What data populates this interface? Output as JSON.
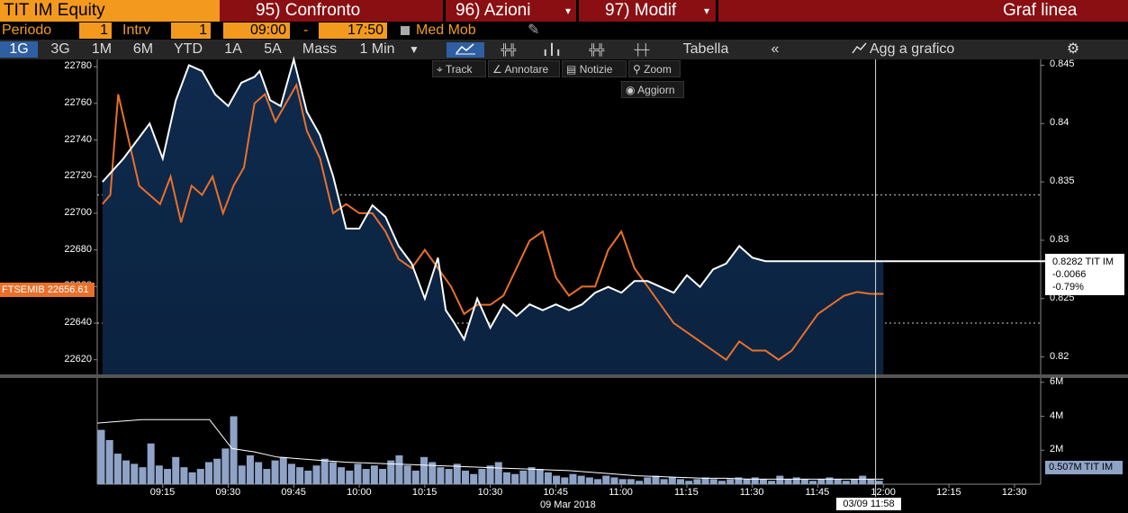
{
  "header": {
    "title": "TIT IM Equity",
    "menu1": "95) Confronto",
    "menu2": "96) Azioni",
    "menu3": "97) Modif",
    "right_title": "Graf linea"
  },
  "settings": {
    "periodo_label": "Periodo",
    "periodo_value": "1",
    "intrv_label": "Intrv",
    "intrv_value": "1",
    "time_start": "09:00",
    "dash": "-",
    "time_end": "17:50",
    "med_mob": "Med Mob"
  },
  "tabs": [
    "1G",
    "3G",
    "1M",
    "6M",
    "YTD",
    "1A",
    "5A",
    "Mass",
    "1 Min"
  ],
  "toolbar": {
    "tabella": "Tabella",
    "back": "«",
    "agg": "Agg a grafico",
    "gear": "⚙"
  },
  "tools": {
    "track": "Track",
    "annotare": "Annotare",
    "notizie": "Notizie",
    "zoom": "Zoom",
    "aggiorn": "Aggiorn"
  },
  "chart_data": {
    "type": "line",
    "date_label": "09 Mar 2018",
    "x_ticks": [
      "09:15",
      "09:30",
      "09:45",
      "10:00",
      "10:15",
      "10:30",
      "10:45",
      "11:00",
      "11:15",
      "11:30",
      "11:45",
      "12:00",
      "12:15",
      "12:30"
    ],
    "left_axis": {
      "ticks": [
        22780,
        22760,
        22740,
        22720,
        22700,
        22680,
        22660,
        22640,
        22620
      ],
      "range": [
        22612,
        22784
      ]
    },
    "right_axis": {
      "ticks": [
        0.845,
        0.84,
        0.835,
        0.83,
        0.825,
        0.82
      ],
      "range": [
        0.8185,
        0.8455
      ]
    },
    "volume_axis": {
      "ticks": [
        "6M",
        "4M",
        "2M"
      ],
      "max": 6.2
    },
    "dotted_levels_left": [
      22710,
      22640
    ],
    "series": [
      {
        "name": "TIT IM",
        "color": "#ffffff",
        "axis": "right",
        "x": [
          9.02,
          9.06,
          9.1,
          9.15,
          9.2,
          9.25,
          9.3,
          9.35,
          9.4,
          9.45,
          9.5,
          9.55,
          9.6,
          9.62,
          9.66,
          9.7,
          9.75,
          9.8,
          9.85,
          9.9,
          9.95,
          10.0,
          10.05,
          10.1,
          10.15,
          10.2,
          10.25,
          10.3,
          10.33,
          10.36,
          10.4,
          10.45,
          10.5,
          10.55,
          10.6,
          10.65,
          10.7,
          10.75,
          10.8,
          10.85,
          10.9,
          10.95,
          11.0,
          11.05,
          11.1,
          11.15,
          11.2,
          11.25,
          11.3,
          11.35,
          11.4,
          11.45,
          11.5,
          11.55,
          11.6,
          11.65,
          11.7,
          11.75,
          11.8,
          11.85,
          11.9,
          11.95,
          11.98,
          12.0
        ],
        "y": [
          0.835,
          0.836,
          0.837,
          0.8385,
          0.84,
          0.837,
          0.842,
          0.845,
          0.8445,
          0.8425,
          0.8415,
          0.8435,
          0.844,
          0.8445,
          0.842,
          0.8415,
          0.8455,
          0.841,
          0.839,
          0.8355,
          0.831,
          0.831,
          0.833,
          0.832,
          0.8295,
          0.828,
          0.825,
          0.8285,
          0.824,
          0.823,
          0.8215,
          0.825,
          0.8225,
          0.8245,
          0.8235,
          0.8245,
          0.824,
          0.8245,
          0.824,
          0.8245,
          0.8255,
          0.826,
          0.8255,
          0.8265,
          0.8265,
          0.826,
          0.8255,
          0.827,
          0.826,
          0.8275,
          0.828,
          0.8295,
          0.8285,
          0.8282,
          0.8282,
          0.8282,
          0.8282,
          0.8282,
          0.8282,
          0.8282,
          0.8282,
          0.8282,
          0.8282,
          0.8282
        ]
      },
      {
        "name": "FTSEMIB",
        "color": "#e8702a",
        "axis": "left",
        "x": [
          9.02,
          9.05,
          9.08,
          9.12,
          9.16,
          9.2,
          9.24,
          9.28,
          9.32,
          9.36,
          9.4,
          9.44,
          9.48,
          9.52,
          9.56,
          9.6,
          9.64,
          9.68,
          9.72,
          9.76,
          9.8,
          9.85,
          9.9,
          9.95,
          10.0,
          10.05,
          10.1,
          10.15,
          10.2,
          10.25,
          10.3,
          10.35,
          10.4,
          10.45,
          10.5,
          10.55,
          10.6,
          10.65,
          10.7,
          10.75,
          10.8,
          10.85,
          10.9,
          10.95,
          11.0,
          11.05,
          11.1,
          11.15,
          11.2,
          11.25,
          11.3,
          11.35,
          11.4,
          11.45,
          11.5,
          11.55,
          11.6,
          11.65,
          11.7,
          11.75,
          11.8,
          11.85,
          11.9,
          11.95,
          12.0
        ],
        "y": [
          22705,
          22710,
          22765,
          22740,
          22715,
          22710,
          22705,
          22720,
          22695,
          22715,
          22710,
          22720,
          22700,
          22715,
          22725,
          22760,
          22765,
          22750,
          22760,
          22770,
          22745,
          22730,
          22700,
          22705,
          22700,
          22700,
          22690,
          22675,
          22670,
          22680,
          22670,
          22660,
          22645,
          22650,
          22650,
          22655,
          22670,
          22685,
          22690,
          22665,
          22655,
          22660,
          22660,
          22680,
          22690,
          22670,
          22660,
          22650,
          22640,
          22635,
          22630,
          22625,
          22620,
          22630,
          22625,
          22625,
          22620,
          22625,
          22635,
          22645,
          22650,
          22655,
          22657,
          22656,
          22656
        ]
      }
    ],
    "volume": [
      3.2,
      2.6,
      1.8,
      1.4,
      1.2,
      1.0,
      2.4,
      1.1,
      0.9,
      1.6,
      1.0,
      0.7,
      0.9,
      1.3,
      1.5,
      2.1,
      4.0,
      1.1,
      1.7,
      1.3,
      0.9,
      1.4,
      1.6,
      1.2,
      1.0,
      0.8,
      1.1,
      1.5,
      1.3,
      1.0,
      0.8,
      1.2,
      0.9,
      1.1,
      0.9,
      1.4,
      1.7,
      1.1,
      0.8,
      1.6,
      1.3,
      1.0,
      0.9,
      1.2,
      0.8,
      0.6,
      0.9,
      1.1,
      1.3,
      0.7,
      0.6,
      0.8,
      1.0,
      0.9,
      0.7,
      0.5,
      0.4,
      0.6,
      0.5,
      0.4,
      0.3,
      0.5,
      0.4,
      0.3,
      0.3,
      0.2,
      0.4,
      0.5,
      0.3,
      0.4,
      0.3,
      0.2,
      0.3,
      0.4,
      0.3,
      0.2,
      0.3,
      0.4,
      0.3,
      0.4,
      0.3,
      0.2,
      0.5,
      0.3,
      0.4,
      0.3,
      0.2,
      0.3,
      0.4,
      0.3,
      0.2,
      0.3,
      0.5,
      0.3,
      0.2
    ],
    "volume_avg": [
      3.6,
      3.7,
      3.8,
      3.8,
      3.8,
      3.8,
      2.1,
      1.9,
      1.6,
      1.5,
      1.4,
      1.3,
      1.25,
      1.2,
      1.15,
      1.1,
      1.05,
      1.0,
      0.95,
      0.9,
      0.85,
      0.8,
      0.7,
      0.6,
      0.5,
      0.45,
      0.4,
      0.35,
      0.35,
      0.3,
      0.3,
      0.3,
      0.3,
      0.3,
      0.3,
      0.3
    ],
    "labels": {
      "left_price": "FTSEMIB 22656.61",
      "right_price": "0.8282 TIT IM",
      "right_chg": "-0.0066",
      "right_pct": "-0.79%",
      "volume_label": "0.507M TIT IM",
      "cursor_time": "03/09 11:58"
    }
  }
}
